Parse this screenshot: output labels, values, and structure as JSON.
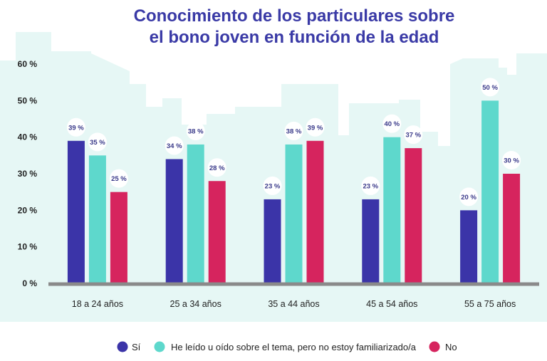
{
  "chart_data": {
    "type": "bar",
    "title": [
      "Conocimiento de los particulares sobre",
      "el bono joven en función de la edad"
    ],
    "categories": [
      "18 a 24 años",
      "25 a 34 años",
      "35 a 44 años",
      "45 a 54 años",
      "55 a 75 años"
    ],
    "series": [
      {
        "name": "Sí",
        "color": "#3b34a8",
        "values": [
          39,
          34,
          23,
          23,
          20
        ],
        "labels": [
          "39 %",
          "34 %",
          "23 %",
          "23 %",
          "20 %"
        ]
      },
      {
        "name": "He leído u oído sobre el tema, pero no estoy familiarizado/a",
        "color": "#5ed8cc",
        "values": [
          35,
          38,
          38,
          40,
          50
        ],
        "labels": [
          "35 %",
          "38 %",
          "38 %",
          "40 %",
          "50 %"
        ]
      },
      {
        "name": "No",
        "color": "#d6245e",
        "values": [
          25,
          28,
          39,
          37,
          30
        ],
        "labels": [
          "25 %",
          "28 %",
          "39 %",
          "37 %",
          "30 %"
        ]
      }
    ],
    "ylim": [
      0,
      60
    ],
    "yticks": [
      0,
      10,
      20,
      30,
      40,
      50,
      60
    ],
    "ytick_labels": [
      "0 %",
      "10 %",
      "20 %",
      "30 %",
      "40 %",
      "50 %",
      "60 %"
    ],
    "xlabel": "",
    "ylabel": "",
    "legend_position": "bottom",
    "colors": {
      "title": "#3a3aa6",
      "background_skyline": "#e6f7f5",
      "axis": "#8a8a8a"
    }
  }
}
